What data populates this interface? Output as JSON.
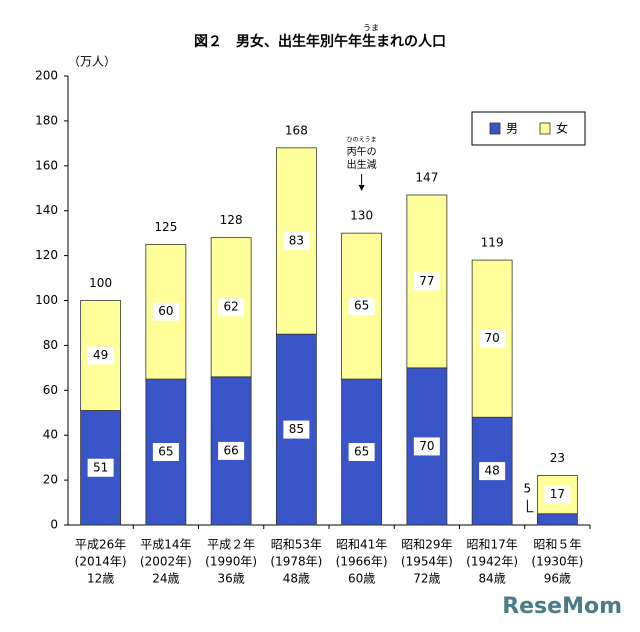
{
  "chart_data": {
    "type": "stacked_bar",
    "title": "図２　男女、出生年別午年生まれの人口",
    "title_ruby": "うま",
    "y_unit": "（万人）",
    "categories": [
      [
        "平成26年",
        "(2014年)",
        "12歳"
      ],
      [
        "平成14年",
        "(2002年)",
        "24歳"
      ],
      [
        "平成２年",
        "(1990年)",
        "36歳"
      ],
      [
        "昭和53年",
        "(1978年)",
        "48歳"
      ],
      [
        "昭和41年",
        "(1966年)",
        "60歳"
      ],
      [
        "昭和29年",
        "(1954年)",
        "72歳"
      ],
      [
        "昭和17年",
        "(1942年)",
        "84歳"
      ],
      [
        "昭和５年",
        "(1930年)",
        "96歳"
      ]
    ],
    "series": [
      {
        "name": "男",
        "color": "#3a55c8",
        "values": [
          51,
          65,
          66,
          85,
          65,
          70,
          48,
          5
        ]
      },
      {
        "name": "女",
        "color": "#ffff99",
        "values": [
          49,
          60,
          62,
          83,
          65,
          77,
          70,
          17
        ]
      }
    ],
    "totals": [
      100,
      125,
      128,
      168,
      130,
      147,
      119,
      23
    ],
    "annotation": {
      "ruby": "ひのえうま",
      "lines": [
        "丙午の",
        "出生減"
      ],
      "category_index": 4
    },
    "ylim": [
      0,
      200
    ],
    "yticks": [
      0,
      20,
      40,
      60,
      80,
      100,
      120,
      140,
      160,
      180,
      200
    ],
    "legend": "upper right",
    "watermark": "ReseMom"
  }
}
